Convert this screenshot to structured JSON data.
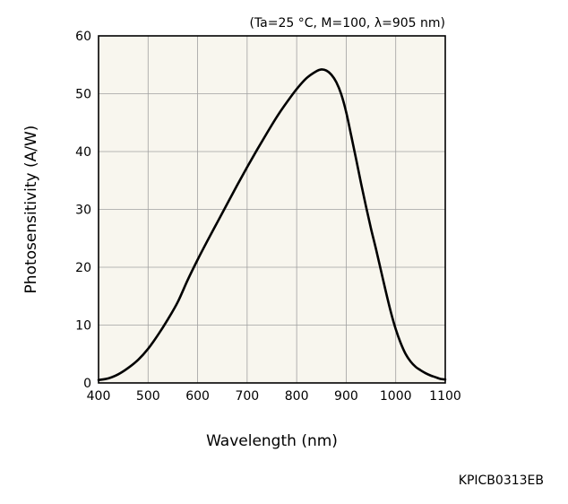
{
  "chart_data": {
    "type": "line",
    "title": "",
    "conditions": "(Ta=25 °C, M=100, λ=905 nm)",
    "xlabel": "Wavelength (nm)",
    "ylabel": "Photosensitivity (A/W)",
    "xlim": [
      400,
      1100
    ],
    "ylim": [
      0,
      60
    ],
    "xticks": [
      400,
      500,
      600,
      700,
      800,
      900,
      1000,
      1100
    ],
    "yticks": [
      0,
      10,
      20,
      30,
      40,
      50,
      60
    ],
    "grid": true,
    "code": "KPICB0313EB",
    "colors": {
      "background": "#f8f6ee",
      "grid": "#a0a0a0",
      "line": "#000000"
    },
    "series": [
      {
        "x": [
          400,
          420,
          440,
          460,
          480,
          500,
          520,
          540,
          560,
          580,
          600,
          620,
          640,
          660,
          680,
          700,
          720,
          740,
          760,
          780,
          800,
          820,
          840,
          850,
          860,
          870,
          880,
          890,
          900,
          910,
          920,
          930,
          940,
          950,
          960,
          970,
          980,
          990,
          1000,
          1010,
          1020,
          1030,
          1040,
          1050,
          1060,
          1070,
          1080,
          1090,
          1100
        ],
        "y": [
          0.5,
          0.8,
          1.5,
          2.6,
          4.0,
          5.9,
          8.3,
          11.0,
          14.0,
          17.8,
          21.3,
          24.6,
          27.8,
          31.0,
          34.2,
          37.3,
          40.3,
          43.2,
          46.0,
          48.5,
          50.8,
          52.7,
          53.9,
          54.2,
          54.0,
          53.3,
          52.0,
          49.9,
          46.8,
          42.8,
          38.7,
          34.5,
          30.5,
          26.7,
          23.2,
          19.5,
          15.8,
          12.3,
          9.3,
          6.9,
          5.0,
          3.7,
          2.8,
          2.2,
          1.7,
          1.3,
          1.0,
          0.7,
          0.6
        ]
      }
    ]
  }
}
